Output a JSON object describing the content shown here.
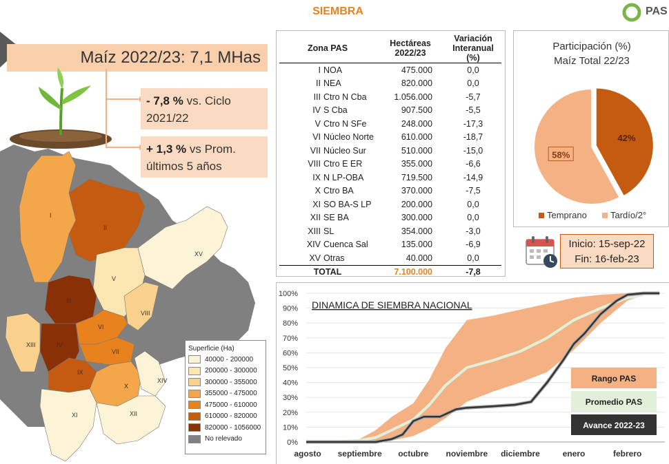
{
  "page": {
    "title": "SIEMBRA",
    "logo_text": "PAS"
  },
  "headline": "Maíz 2022/23: 7,1 MHas",
  "stats": [
    {
      "value": "- 7,8 %",
      "text": " vs. Ciclo 2021/22"
    },
    {
      "value": "+ 1,3 %",
      "text": " vs Prom. últimos 5 años"
    }
  ],
  "table": {
    "headers": [
      "Zona PAS",
      "Hectáreas 2022/23",
      "Variación Interanual (%)"
    ],
    "rows": [
      {
        "roman": "I",
        "name": "NOA",
        "ha": "475.000",
        "var": "0,0"
      },
      {
        "roman": "II",
        "name": "NEA",
        "ha": "820.000",
        "var": "0,0"
      },
      {
        "roman": "III",
        "name": "Ctro N Cba",
        "ha": "1.056.000",
        "var": "-5,7"
      },
      {
        "roman": "IV",
        "name": "S Cba",
        "ha": "907.500",
        "var": "-5,5"
      },
      {
        "roman": "V",
        "name": "Ctro N SFe",
        "ha": "248.000",
        "var": "-17,3"
      },
      {
        "roman": "VI",
        "name": "Núcleo Norte",
        "ha": "610.000",
        "var": "-18,7"
      },
      {
        "roman": "VII",
        "name": "Núcleo Sur",
        "ha": "510.000",
        "var": "-15,0"
      },
      {
        "roman": "VIII",
        "name": "Ctro E ER",
        "ha": "355.000",
        "var": "-6,6"
      },
      {
        "roman": "IX",
        "name": "N LP-OBA",
        "ha": "719.500",
        "var": "-14,9"
      },
      {
        "roman": "X",
        "name": "Ctro BA",
        "ha": "370.000",
        "var": "-7,5"
      },
      {
        "roman": "XI",
        "name": "SO BA-S LP",
        "ha": "200.000",
        "var": "0,0"
      },
      {
        "roman": "XII",
        "name": "SE BA",
        "ha": "300.000",
        "var": "0,0"
      },
      {
        "roman": "XIII",
        "name": "SL",
        "ha": "354.000",
        "var": "-3,0"
      },
      {
        "roman": "XIV",
        "name": "Cuenca Sal",
        "ha": "135.000",
        "var": "-6,9"
      },
      {
        "roman": "XV",
        "name": "Otras",
        "ha": "40.000",
        "var": "0,0"
      }
    ],
    "total": {
      "label": "TOTAL",
      "ha": "7.100.000",
      "var": "-7,8"
    }
  },
  "pie": {
    "title_line1": "Participación (%)",
    "title_line2": "Maíz Total 22/23",
    "slices": [
      {
        "name": "Temprano",
        "value": 42,
        "label": "42%",
        "color": "#c55a11"
      },
      {
        "name": "Tardío/2°",
        "value": 58,
        "label": "58%",
        "color": "#f4b183"
      }
    ]
  },
  "dates": {
    "start": "Inicio: 15-sep-22",
    "end": "Fin: 16-feb-23"
  },
  "map": {
    "legend_title": "Superficie (Ha)",
    "legend": [
      {
        "label": "40000 - 200000",
        "color": "#fdf3d6"
      },
      {
        "label": "200000 - 300000",
        "color": "#fbe6b2"
      },
      {
        "label": "300000 - 355000",
        "color": "#f9d08c"
      },
      {
        "label": "355000 - 475000",
        "color": "#f4a64a"
      },
      {
        "label": "475000 - 610000",
        "color": "#e8821f"
      },
      {
        "label": "610000 - 820000",
        "color": "#c55a11"
      },
      {
        "label": "820000 - 1056000",
        "color": "#8a3007"
      },
      {
        "label": "No relevado",
        "color": "#808080"
      }
    ],
    "zone_labels": [
      "I",
      "II",
      "III",
      "IV",
      "V",
      "VI",
      "VII",
      "VIII",
      "IX",
      "X",
      "XI",
      "XII",
      "XIII",
      "XIV",
      "XV"
    ]
  },
  "chart_data": {
    "type": "area",
    "title": "DINAMICA DE SIEMBRA NACIONAL",
    "categories": [
      "agosto",
      "septiembre",
      "octubre",
      "noviembre",
      "diciembre",
      "enero",
      "febrero"
    ],
    "y_ticks": [
      "0%",
      "10%",
      "20%",
      "30%",
      "40%",
      "50%",
      "60%",
      "70%",
      "80%",
      "90%",
      "100%"
    ],
    "ylim": [
      0,
      100
    ],
    "xlim": [
      0,
      6.7
    ],
    "series": [
      {
        "name": "Rango PAS",
        "kind": "band",
        "color": "#f4b183",
        "x": [
          0,
          0.5,
          1,
          1.3,
          1.6,
          2,
          2.3,
          2.6,
          3,
          3.5,
          4,
          4.5,
          5,
          5.5,
          6,
          6.3
        ],
        "low": [
          0,
          0,
          0,
          0,
          1,
          4,
          9,
          16,
          27,
          34,
          40,
          47,
          62,
          80,
          95,
          99
        ],
        "high": [
          0,
          0,
          2,
          8,
          17,
          26,
          42,
          63,
          82,
          85,
          89,
          93,
          97,
          99,
          100,
          100
        ]
      },
      {
        "name": "Promedio PAS",
        "kind": "line",
        "color": "#e2efd9",
        "x": [
          0,
          0.5,
          1,
          1.3,
          1.6,
          2,
          2.3,
          2.6,
          3,
          3.5,
          4,
          4.5,
          5,
          5.5,
          6,
          6.3
        ],
        "values": [
          0,
          0,
          1,
          3,
          8,
          15,
          25,
          38,
          50,
          55,
          61,
          70,
          82,
          90,
          97,
          99
        ]
      },
      {
        "name": "Avance 2022-23",
        "kind": "line",
        "color": "#333333",
        "x": [
          0,
          0.5,
          1,
          1.3,
          1.6,
          1.8,
          2,
          2.2,
          2.5,
          2.8,
          3,
          3.5,
          3.9,
          4.2,
          4.5,
          4.8,
          5,
          5.2,
          5.5,
          5.8,
          6,
          6.3,
          6.6
        ],
        "values": [
          0,
          0,
          0,
          0,
          2,
          5,
          14,
          17,
          17,
          22,
          23,
          24,
          25,
          27,
          40,
          55,
          66,
          73,
          86,
          95,
          99,
          100,
          100
        ]
      }
    ],
    "legend_position": "right"
  }
}
